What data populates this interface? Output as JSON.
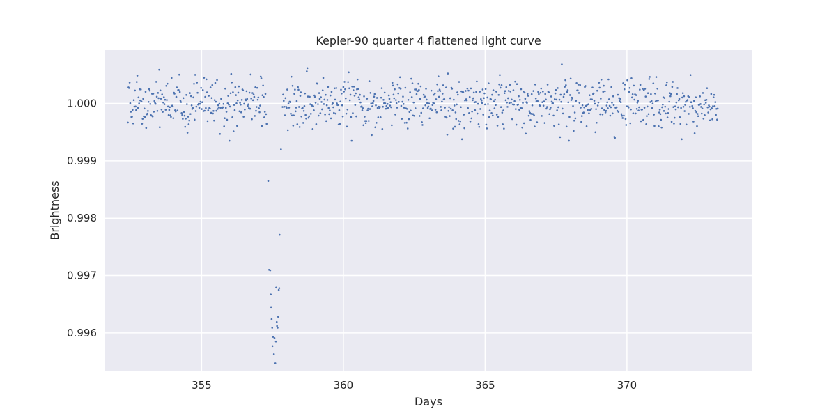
{
  "chart_data": {
    "type": "scatter",
    "title": "Kepler-90 quarter 4 flattened light curve",
    "xlabel": "Days",
    "ylabel": "Brightness",
    "xlim": [
      351.6,
      374.4
    ],
    "ylim": [
      0.99533,
      1.00093
    ],
    "xticks": [
      355,
      360,
      365,
      370
    ],
    "yticks": [
      0.996,
      0.997,
      0.998,
      0.999,
      1.0
    ],
    "ytick_format": 3,
    "grid": true,
    "background": "#eaeaf2",
    "grid_color": "#ffffff",
    "marker_color": "#4c72b0",
    "series": [
      {
        "baseline": {
          "x_start": 352.4,
          "x_end": 373.2,
          "count": 1000,
          "center": 1.0,
          "noise_sd": 0.00022
        },
        "transit_points": [
          {
            "x": 357.35,
            "y": 0.99865
          },
          {
            "x": 357.38,
            "y": 0.9971
          },
          {
            "x": 357.42,
            "y": 0.99709
          },
          {
            "x": 357.44,
            "y": 0.99667
          },
          {
            "x": 357.45,
            "y": 0.99645
          },
          {
            "x": 357.47,
            "y": 0.99624
          },
          {
            "x": 357.49,
            "y": 0.99609
          },
          {
            "x": 357.5,
            "y": 0.99577
          },
          {
            "x": 357.52,
            "y": 0.99593
          },
          {
            "x": 357.55,
            "y": 0.99563
          },
          {
            "x": 357.57,
            "y": 0.99591
          },
          {
            "x": 357.6,
            "y": 0.99547
          },
          {
            "x": 357.62,
            "y": 0.99585
          },
          {
            "x": 357.63,
            "y": 0.99679
          },
          {
            "x": 357.65,
            "y": 0.99619
          },
          {
            "x": 357.66,
            "y": 0.99612
          },
          {
            "x": 357.68,
            "y": 0.99609
          },
          {
            "x": 357.7,
            "y": 0.99628
          },
          {
            "x": 357.72,
            "y": 0.99675
          },
          {
            "x": 357.74,
            "y": 0.99678
          },
          {
            "x": 357.75,
            "y": 0.99771
          },
          {
            "x": 357.8,
            "y": 0.9992
          }
        ]
      }
    ]
  }
}
